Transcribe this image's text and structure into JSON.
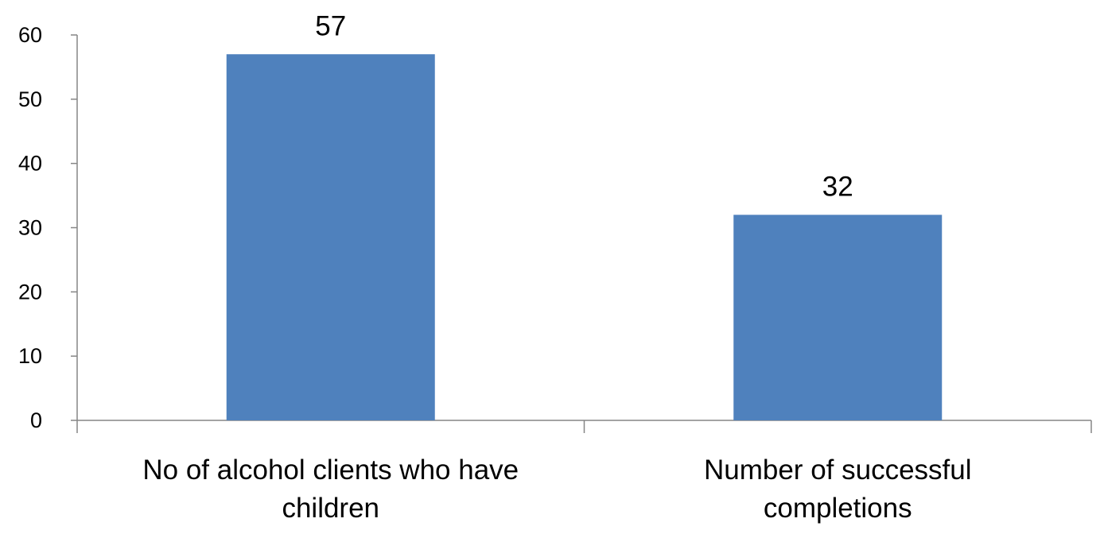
{
  "chart_data": {
    "type": "bar",
    "categories": [
      [
        "No of alcohol  clients who have",
        "children"
      ],
      [
        "Number of successful",
        "completions"
      ]
    ],
    "values": [
      57,
      32
    ],
    "data_labels": [
      "57",
      "32"
    ],
    "ylim": [
      0,
      60
    ],
    "yticks": [
      "0",
      "10",
      "20",
      "30",
      "40",
      "50",
      "60"
    ],
    "grid": false,
    "legend": "none",
    "bar_color": "#4F81BD"
  }
}
